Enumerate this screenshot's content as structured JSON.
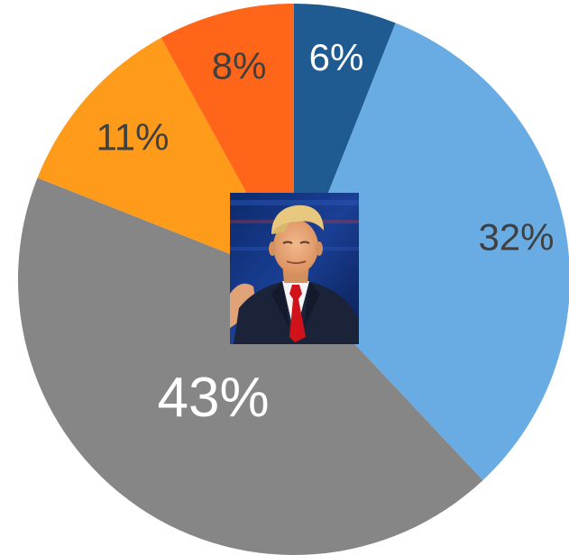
{
  "chart_data": {
    "type": "pie",
    "title": "",
    "start_angle_deg": 0,
    "direction": "clockwise",
    "slices": [
      {
        "value": 6,
        "label": "6%",
        "color": "#1f5a91",
        "label_color": "#ffffff"
      },
      {
        "value": 32,
        "label": "32%",
        "color": "#69ace3",
        "label_color": "#404040"
      },
      {
        "value": 43,
        "label": "43%",
        "color": "#868686",
        "label_color": "#ffffff"
      },
      {
        "value": 11,
        "label": "11%",
        "color": "#ff9b1a",
        "label_color": "#404040"
      },
      {
        "value": 8,
        "label": "8%",
        "color": "#ff661a",
        "label_color": "#404040"
      }
    ],
    "center_image": "portrait-photo"
  }
}
